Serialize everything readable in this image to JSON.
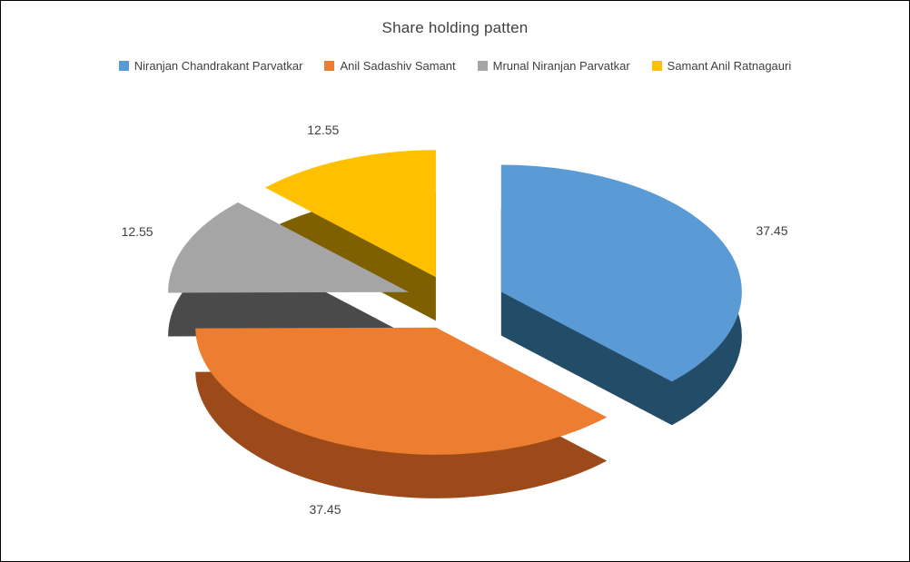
{
  "chart_data": {
    "type": "pie",
    "style": "3d-exploded",
    "title": "Share holding patten",
    "legend_position": "top",
    "start_angle": -90,
    "labels": [
      "Niranjan Chandrakant Parvatkar",
      "Anil Sadashiv Samant",
      "Mrunal Niranjan Parvatkar",
      "Samant Anil Ratnagauri"
    ],
    "values": [
      37.45,
      37.45,
      12.55,
      12.55
    ],
    "data_labels": [
      "37.45",
      "37.45",
      "12.55",
      "12.55"
    ],
    "colors": [
      "#5B9BD5",
      "#ED7D31",
      "#A5A5A5",
      "#FFC000"
    ],
    "side_colors": [
      "#234C68",
      "#9C4A1A",
      "#4A4A4A",
      "#7F6000"
    ],
    "text_color": "#404040",
    "background": "#FFFFFF"
  }
}
